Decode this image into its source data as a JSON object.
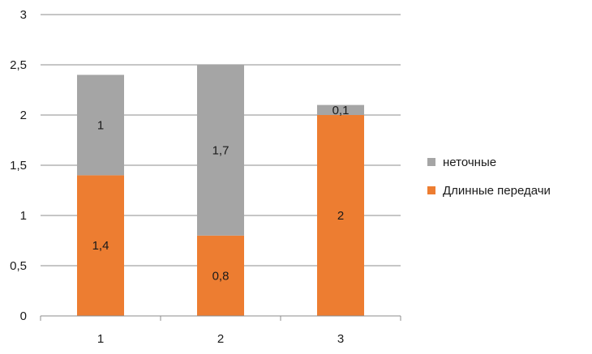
{
  "chart_data": {
    "type": "bar",
    "stacked": true,
    "categories": [
      "1",
      "2",
      "3"
    ],
    "series": [
      {
        "name": "Длинные передачи",
        "values": [
          1.4,
          0.8,
          2
        ],
        "labels": [
          "1,4",
          "0,8",
          "2"
        ],
        "color": "#ED7D31"
      },
      {
        "name": "неточные",
        "values": [
          1,
          1.7,
          0.1
        ],
        "labels": [
          "1",
          "1,7",
          "0,1"
        ],
        "color": "#A5A5A5"
      }
    ],
    "ylim": [
      0,
      3
    ],
    "yticks": [
      0,
      0.5,
      1,
      1.5,
      2,
      2.5,
      3
    ],
    "ytick_labels": [
      "0",
      "0,5",
      "1",
      "1,5",
      "2",
      "2,5",
      "3"
    ],
    "grid": true,
    "legend_position": "right",
    "legend_order": [
      "неточные",
      "Длинные передачи"
    ],
    "title": "",
    "xlabel": "",
    "ylabel": ""
  }
}
